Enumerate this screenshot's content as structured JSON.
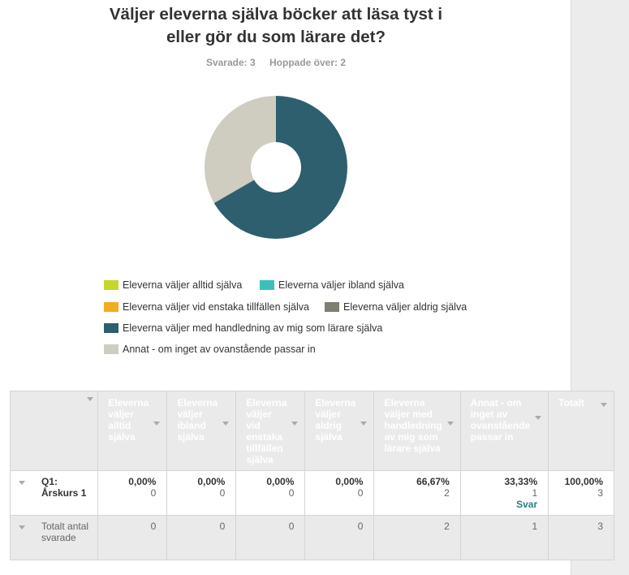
{
  "question": {
    "title_line1": "Väljer eleverna själva böcker att läsa tyst i",
    "title_line2": "eller gör du som lärare det?",
    "answered": "Svarade: 3",
    "skipped": "Hoppade över: 2"
  },
  "chart_data": {
    "type": "pie",
    "donut": true,
    "categories": [
      "Eleverna väljer alltid själva",
      "Eleverna väljer ibland själva",
      "Eleverna väljer vid enstaka tillfällen själva",
      "Eleverna väljer aldrig själva",
      "Eleverna väljer med handledning av mig som lärare själva",
      "Annat - om inget av ovanstående passar in"
    ],
    "values": [
      0,
      0,
      0,
      0,
      66.67,
      33.33
    ],
    "colors": [
      "#c6d62a",
      "#3bbfba",
      "#f3ac1f",
      "#7e7e72",
      "#2d5f6e",
      "#cfcdbf"
    ],
    "legend_position": "bottom"
  },
  "legend": [
    {
      "label": "Eleverna väljer alltid själva",
      "color": "#c6d62a"
    },
    {
      "label": "Eleverna väljer ibland själva",
      "color": "#3bbfba"
    },
    {
      "label": "Eleverna väljer vid enstaka tillfällen själva",
      "color": "#f3ac1f"
    },
    {
      "label": "Eleverna väljer aldrig själva",
      "color": "#7e7e72"
    },
    {
      "label": "Eleverna väljer med handledning av mig som lärare själva",
      "color": "#2d5f6e"
    },
    {
      "label": "Annat - om inget av ovanstående passar in",
      "color": "#cfcdbf"
    }
  ],
  "table": {
    "headers": [
      "Eleverna väljer alltid själva",
      "Eleverna väljer ibland själva",
      "Eleverna väljer vid enstaka tillfällen själva",
      "Eleverna väljer aldrig själva",
      "Eleverna väljer med handledning av mig som lärare själva",
      "Annat - om inget av ovanstående passar in",
      "Totalt"
    ],
    "row": {
      "label": "Q1: Årskurs 1",
      "pcts": [
        "0,00%",
        "0,00%",
        "0,00%",
        "0,00%",
        "66,67%",
        "33,33%",
        "100,00%"
      ],
      "counts": [
        "0",
        "0",
        "0",
        "0",
        "2",
        "1",
        "3"
      ],
      "link": "Svar"
    },
    "total": {
      "label": "Totalt antal svarade",
      "counts": [
        "0",
        "0",
        "0",
        "0",
        "2",
        "1",
        "3"
      ]
    }
  }
}
